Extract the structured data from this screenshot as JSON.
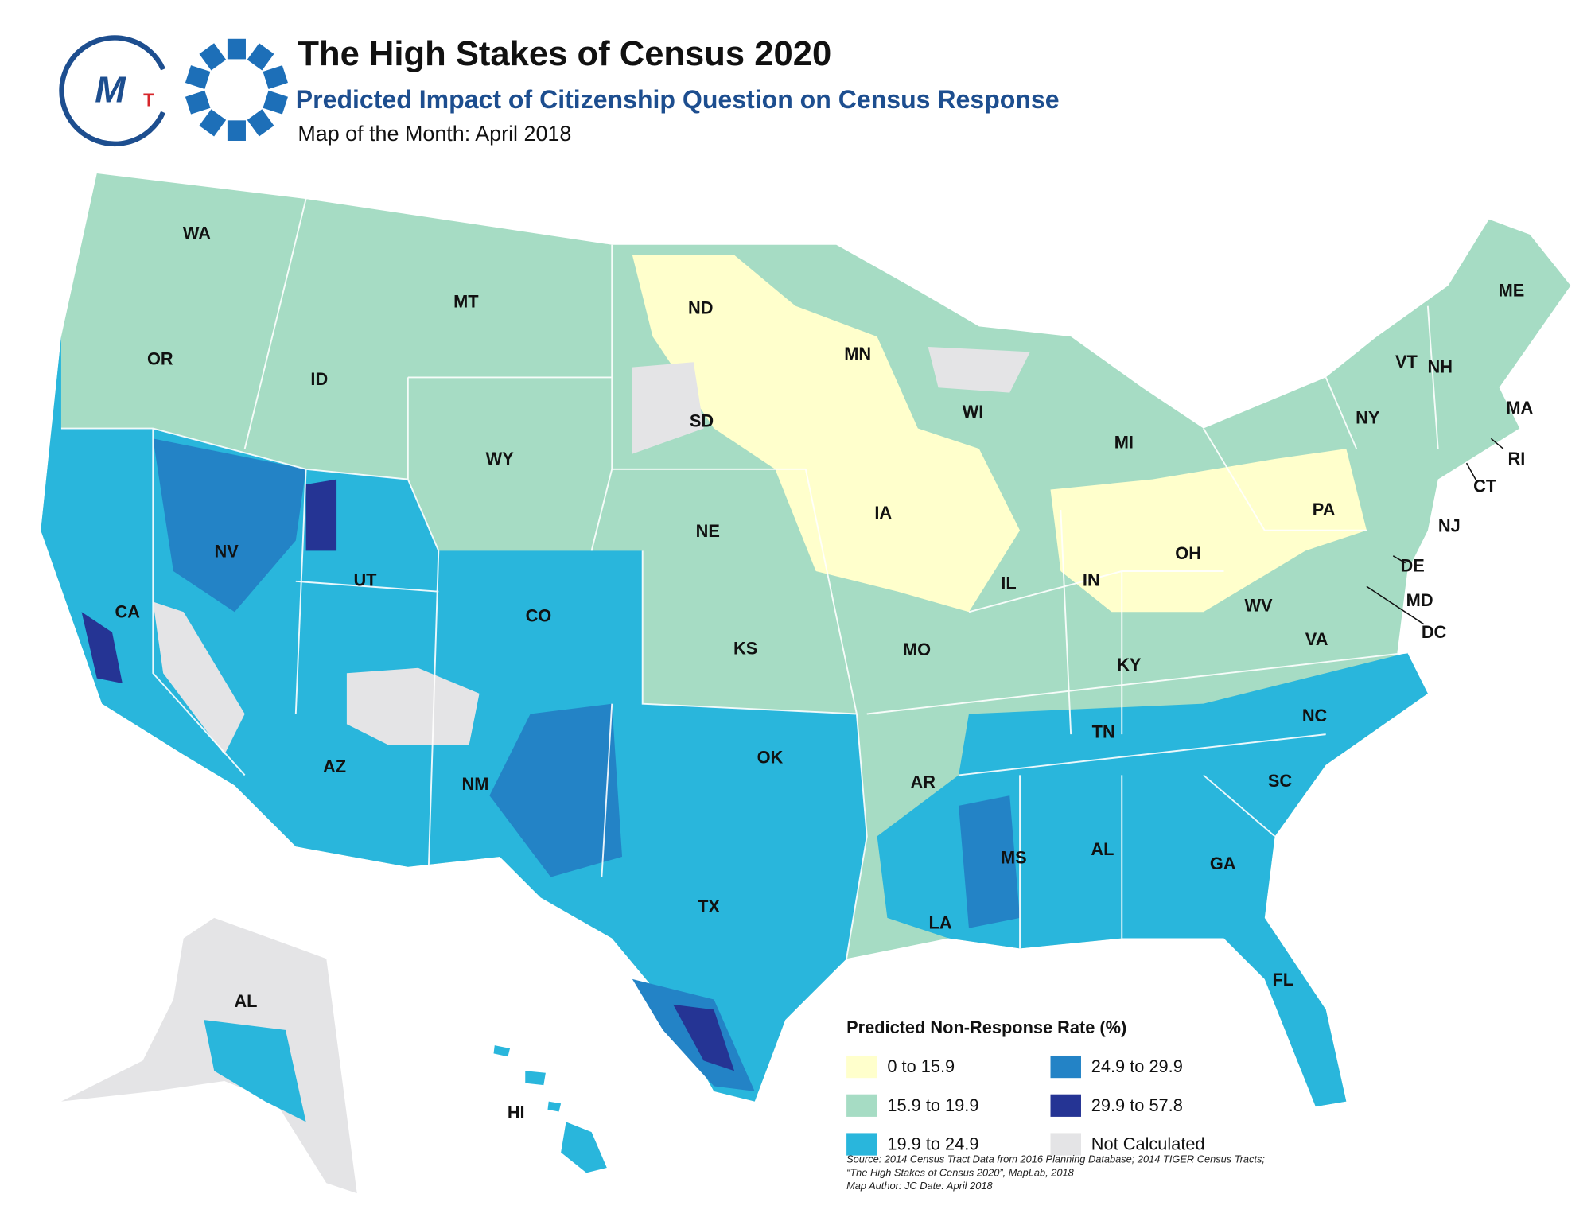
{
  "header": {
    "title": "The High Stakes of Census 2020",
    "subtitle": "Predicted Impact of Citizenship Question on Census Response",
    "tagline": "Map of the Month:  April 2018"
  },
  "logo": {
    "m": "M",
    "t": "T"
  },
  "map": {
    "state_labels": [
      "WA",
      "OR",
      "CA",
      "NV",
      "ID",
      "MT",
      "WY",
      "UT",
      "AZ",
      "NM",
      "CO",
      "ND",
      "SD",
      "NE",
      "KS",
      "OK",
      "TX",
      "MN",
      "IA",
      "MO",
      "AR",
      "LA",
      "WI",
      "IL",
      "MI",
      "IN",
      "OH",
      "KY",
      "TN",
      "MS",
      "AL",
      "GA",
      "FL",
      "SC",
      "NC",
      "VA",
      "WV",
      "PA",
      "NY",
      "VT",
      "NH",
      "ME",
      "MA",
      "RI",
      "CT",
      "NJ",
      "DE",
      "MD",
      "DC",
      "AL",
      "HI"
    ]
  },
  "legend": {
    "title": "Predicted Non-Response Rate (%)",
    "items": [
      {
        "label": "0 to 15.9",
        "color": "#ffffcc"
      },
      {
        "label": "15.9 to 19.9",
        "color": "#a6dcc4"
      },
      {
        "label": "19.9 to 24.9",
        "color": "#29b6dc"
      },
      {
        "label": "24.9 to 29.9",
        "color": "#2383c6"
      },
      {
        "label": "29.9 to 57.8",
        "color": "#253494"
      },
      {
        "label": "Not Calculated",
        "color": "#e4e4e6"
      }
    ]
  },
  "source": [
    "Source: 2014 Census Tract Data from 2016 Planning Database; 2014 TIGER Census Tracts;",
    "“The High Stakes of Census 2020”, MapLab, 2018",
    "Map Author: JC Date: April 2018"
  ]
}
